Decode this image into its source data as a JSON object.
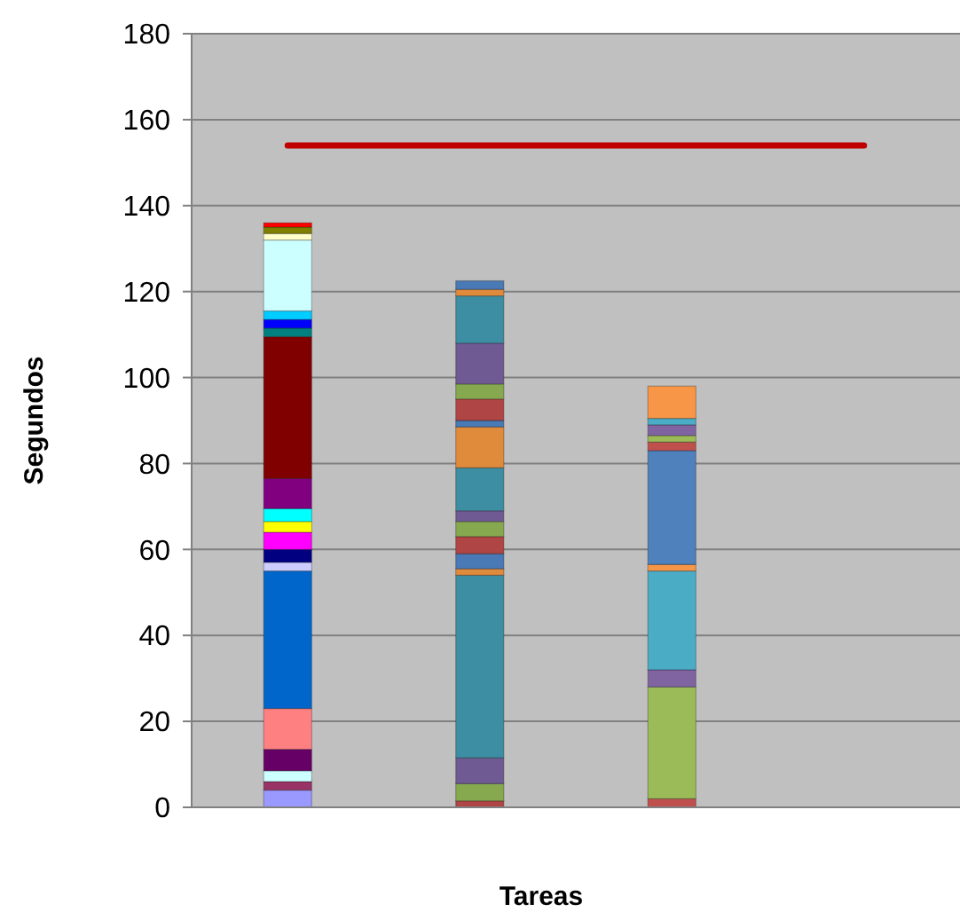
{
  "chart_data": {
    "type": "bar",
    "stacked": true,
    "xlabel": "Tareas",
    "ylabel": "Segundos",
    "categories": [
      null,
      null,
      null,
      null
    ],
    "ylim": [
      0,
      180
    ],
    "yticks": [
      0,
      20,
      40,
      60,
      80,
      100,
      120,
      140,
      160,
      180
    ],
    "grid": "y",
    "series": [
      {
        "color": "#9999ff",
        "values": [
          4,
          null,
          null,
          null
        ]
      },
      {
        "color": "#993366",
        "values": [
          2,
          null,
          null,
          null
        ]
      },
      {
        "color": "#ccffff",
        "values": [
          2.5,
          null,
          null,
          null
        ]
      },
      {
        "color": "#660066",
        "values": [
          5,
          null,
          null,
          null
        ]
      },
      {
        "color": "#ff8080",
        "values": [
          9.5,
          null,
          null,
          null
        ]
      },
      {
        "color": "#0066cc",
        "values": [
          32,
          null,
          null,
          null
        ]
      },
      {
        "color": "#ccccff",
        "values": [
          2,
          null,
          null,
          null
        ]
      },
      {
        "color": "#000080",
        "values": [
          3,
          null,
          null,
          null
        ]
      },
      {
        "color": "#ff00ff",
        "values": [
          4,
          null,
          null,
          null
        ]
      },
      {
        "color": "#ffff00",
        "values": [
          2.5,
          null,
          null,
          null
        ]
      },
      {
        "color": "#00ffff",
        "values": [
          3,
          null,
          null,
          null
        ]
      },
      {
        "color": "#800080",
        "values": [
          7,
          null,
          null,
          null
        ]
      },
      {
        "color": "#800000",
        "values": [
          33,
          null,
          null,
          null
        ]
      },
      {
        "color": "#008080",
        "values": [
          2,
          null,
          null,
          null
        ]
      },
      {
        "color": "#0000ff",
        "values": [
          2,
          null,
          null,
          null
        ]
      },
      {
        "color": "#00ccff",
        "values": [
          2,
          null,
          null,
          null
        ]
      },
      {
        "color": "#ccffff",
        "values": [
          16.5,
          null,
          null,
          null
        ]
      },
      {
        "color": "#ffffcc",
        "values": [
          1.5,
          null,
          null,
          null
        ]
      },
      {
        "color": "#808000",
        "values": [
          1.5,
          null,
          null,
          null
        ]
      },
      {
        "color": "#ff0000",
        "values": [
          1,
          null,
          null,
          null
        ]
      },
      {
        "color": "#b04545",
        "values": [
          null,
          1.5,
          null,
          null
        ]
      },
      {
        "color": "#86a84e",
        "values": [
          null,
          4,
          null,
          null
        ]
      },
      {
        "color": "#6f5a93",
        "values": [
          null,
          6,
          null,
          null
        ]
      },
      {
        "color": "#3d8da3",
        "values": [
          null,
          42.5,
          null,
          null
        ]
      },
      {
        "color": "#e08a3c",
        "values": [
          null,
          1.5,
          null,
          null
        ]
      },
      {
        "color": "#4a7ab5",
        "values": [
          null,
          3.5,
          null,
          null
        ]
      },
      {
        "color": "#b04545",
        "values": [
          null,
          4,
          null,
          null
        ]
      },
      {
        "color": "#86a84e",
        "values": [
          null,
          3.5,
          null,
          null
        ]
      },
      {
        "color": "#6f5a93",
        "values": [
          null,
          2.5,
          null,
          null
        ]
      },
      {
        "color": "#3d8da3",
        "values": [
          null,
          10,
          null,
          null
        ]
      },
      {
        "color": "#e08a3c",
        "values": [
          null,
          9.5,
          null,
          null
        ]
      },
      {
        "color": "#4a7ab5",
        "values": [
          null,
          1.5,
          null,
          null
        ]
      },
      {
        "color": "#b04545",
        "values": [
          null,
          5,
          null,
          null
        ]
      },
      {
        "color": "#86a84e",
        "values": [
          null,
          3.5,
          null,
          null
        ]
      },
      {
        "color": "#6f5a93",
        "values": [
          null,
          9.5,
          null,
          null
        ]
      },
      {
        "color": "#3d8da3",
        "values": [
          null,
          11,
          null,
          null
        ]
      },
      {
        "color": "#e08a3c",
        "values": [
          null,
          1.5,
          null,
          null
        ]
      },
      {
        "color": "#4a7ab5",
        "values": [
          null,
          2,
          null,
          null
        ]
      },
      {
        "color": "#c0504d",
        "values": [
          null,
          null,
          2,
          null
        ]
      },
      {
        "color": "#9bbb59",
        "values": [
          null,
          null,
          26,
          null
        ]
      },
      {
        "color": "#8064a2",
        "values": [
          null,
          null,
          4,
          null
        ]
      },
      {
        "color": "#4bacc6",
        "values": [
          null,
          null,
          23,
          null
        ]
      },
      {
        "color": "#f79646",
        "values": [
          null,
          null,
          1.5,
          null
        ]
      },
      {
        "color": "#4f81bd",
        "values": [
          null,
          null,
          26.5,
          null
        ]
      },
      {
        "color": "#c0504d",
        "values": [
          null,
          null,
          2,
          null
        ]
      },
      {
        "color": "#9bbb59",
        "values": [
          null,
          null,
          1.5,
          null
        ]
      },
      {
        "color": "#8064a2",
        "values": [
          null,
          null,
          2.5,
          null
        ]
      },
      {
        "color": "#4bacc6",
        "values": [
          null,
          null,
          1.5,
          null
        ]
      },
      {
        "color": "#f79646",
        "values": [
          null,
          null,
          7.5,
          null
        ]
      },
      {
        "type": "line",
        "color": "#c00000",
        "values": [
          154,
          154,
          154,
          154
        ]
      }
    ]
  }
}
